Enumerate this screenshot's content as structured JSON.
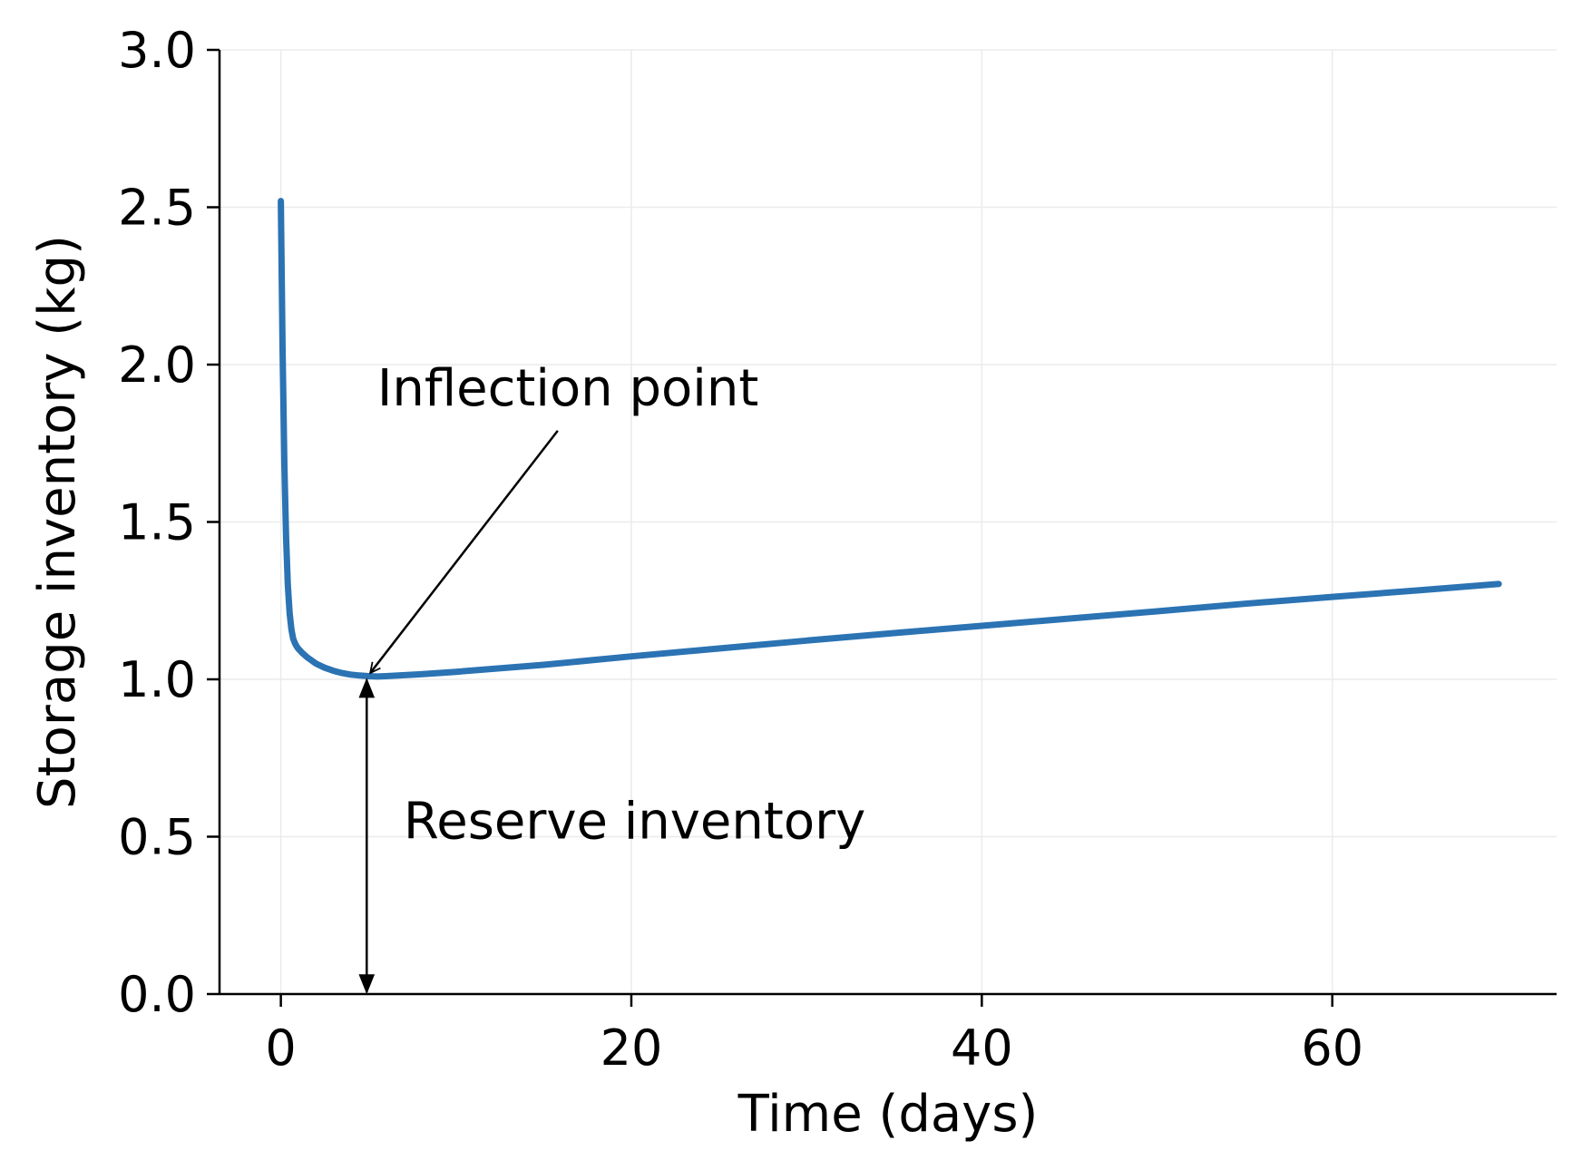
{
  "chart_data": {
    "type": "line",
    "title": "",
    "xlabel": "Time (days)",
    "ylabel": "Storage inventory (kg)",
    "xlim": [
      -3.5,
      72.8
    ],
    "ylim": [
      0.0,
      3.0
    ],
    "x_ticks": [
      0,
      20,
      40,
      60
    ],
    "x_tick_labels": [
      "0",
      "20",
      "40",
      "60"
    ],
    "y_ticks": [
      0.0,
      0.5,
      1.0,
      1.5,
      2.0,
      2.5,
      3.0
    ],
    "y_tick_labels": [
      "0.0",
      "0.5",
      "1.0",
      "1.5",
      "2.0",
      "2.5",
      "3.0"
    ],
    "grid": true,
    "series": [
      {
        "name": "Storage inventory",
        "color": "#2b73b3",
        "x": [
          0,
          0.1,
          0.2,
          0.3,
          0.4,
          0.5,
          0.6,
          0.7,
          0.8,
          0.9,
          1.0,
          1.2,
          1.5,
          2.0,
          2.5,
          3.0,
          3.5,
          4.0,
          4.5,
          5.0,
          5.5,
          6,
          8,
          10,
          15,
          20,
          25,
          30,
          35,
          40,
          45,
          50,
          55,
          60,
          65,
          69.5
        ],
        "y": [
          2.52,
          2.05,
          1.68,
          1.45,
          1.3,
          1.21,
          1.16,
          1.13,
          1.115,
          1.105,
          1.097,
          1.085,
          1.07,
          1.05,
          1.037,
          1.027,
          1.02,
          1.015,
          1.012,
          1.01,
          1.009,
          1.01,
          1.016,
          1.024,
          1.046,
          1.073,
          1.098,
          1.123,
          1.147,
          1.17,
          1.193,
          1.216,
          1.24,
          1.262,
          1.283,
          1.303
        ]
      }
    ],
    "annotations": [
      {
        "text": "Inflection point",
        "type": "arrow",
        "text_at": [
          5.5,
          1.87
        ],
        "arrow_from": [
          15.8,
          1.79
        ],
        "arrow_to": [
          5.1,
          1.02
        ]
      },
      {
        "text": "Reserve inventory",
        "type": "double-arrow",
        "text_at": [
          7.0,
          0.5
        ],
        "arrow_x": 4.9,
        "arrow_from_y": 0.0,
        "arrow_to_y": 1.01
      }
    ],
    "colors": {
      "line": "#2b73b3",
      "grid": "#ebebeb",
      "axis": "#000000"
    }
  }
}
